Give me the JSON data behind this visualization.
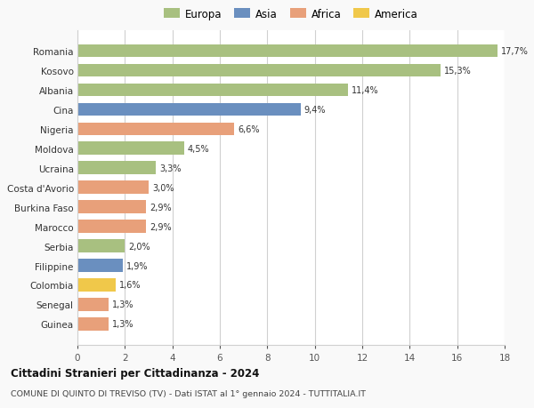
{
  "countries": [
    "Romania",
    "Kosovo",
    "Albania",
    "Cina",
    "Nigeria",
    "Moldova",
    "Ucraina",
    "Costa d'Avorio",
    "Burkina Faso",
    "Marocco",
    "Serbia",
    "Filippine",
    "Colombia",
    "Senegal",
    "Guinea"
  ],
  "values": [
    17.7,
    15.3,
    11.4,
    9.4,
    6.6,
    4.5,
    3.3,
    3.0,
    2.9,
    2.9,
    2.0,
    1.9,
    1.6,
    1.3,
    1.3
  ],
  "labels": [
    "17,7%",
    "15,3%",
    "11,4%",
    "9,4%",
    "6,6%",
    "4,5%",
    "3,3%",
    "3,0%",
    "2,9%",
    "2,9%",
    "2,0%",
    "1,9%",
    "1,6%",
    "1,3%",
    "1,3%"
  ],
  "colors": [
    "#a8c080",
    "#a8c080",
    "#a8c080",
    "#6a8fbf",
    "#e8a07a",
    "#a8c080",
    "#a8c080",
    "#e8a07a",
    "#e8a07a",
    "#e8a07a",
    "#a8c080",
    "#6a8fbf",
    "#f0c84a",
    "#e8a07a",
    "#e8a07a"
  ],
  "legend_labels": [
    "Europa",
    "Asia",
    "Africa",
    "America"
  ],
  "legend_colors": [
    "#a8c080",
    "#6a8fbf",
    "#e8a07a",
    "#f0c84a"
  ],
  "title": "Cittadini Stranieri per Cittadinanza - 2024",
  "subtitle": "COMUNE DI QUINTO DI TREVISO (TV) - Dati ISTAT al 1° gennaio 2024 - TUTTITALIA.IT",
  "xlim": [
    0,
    18
  ],
  "xticks": [
    0,
    2,
    4,
    6,
    8,
    10,
    12,
    14,
    16,
    18
  ],
  "background_color": "#f9f9f9",
  "bar_background": "#ffffff",
  "grid_color": "#d0d0d0"
}
